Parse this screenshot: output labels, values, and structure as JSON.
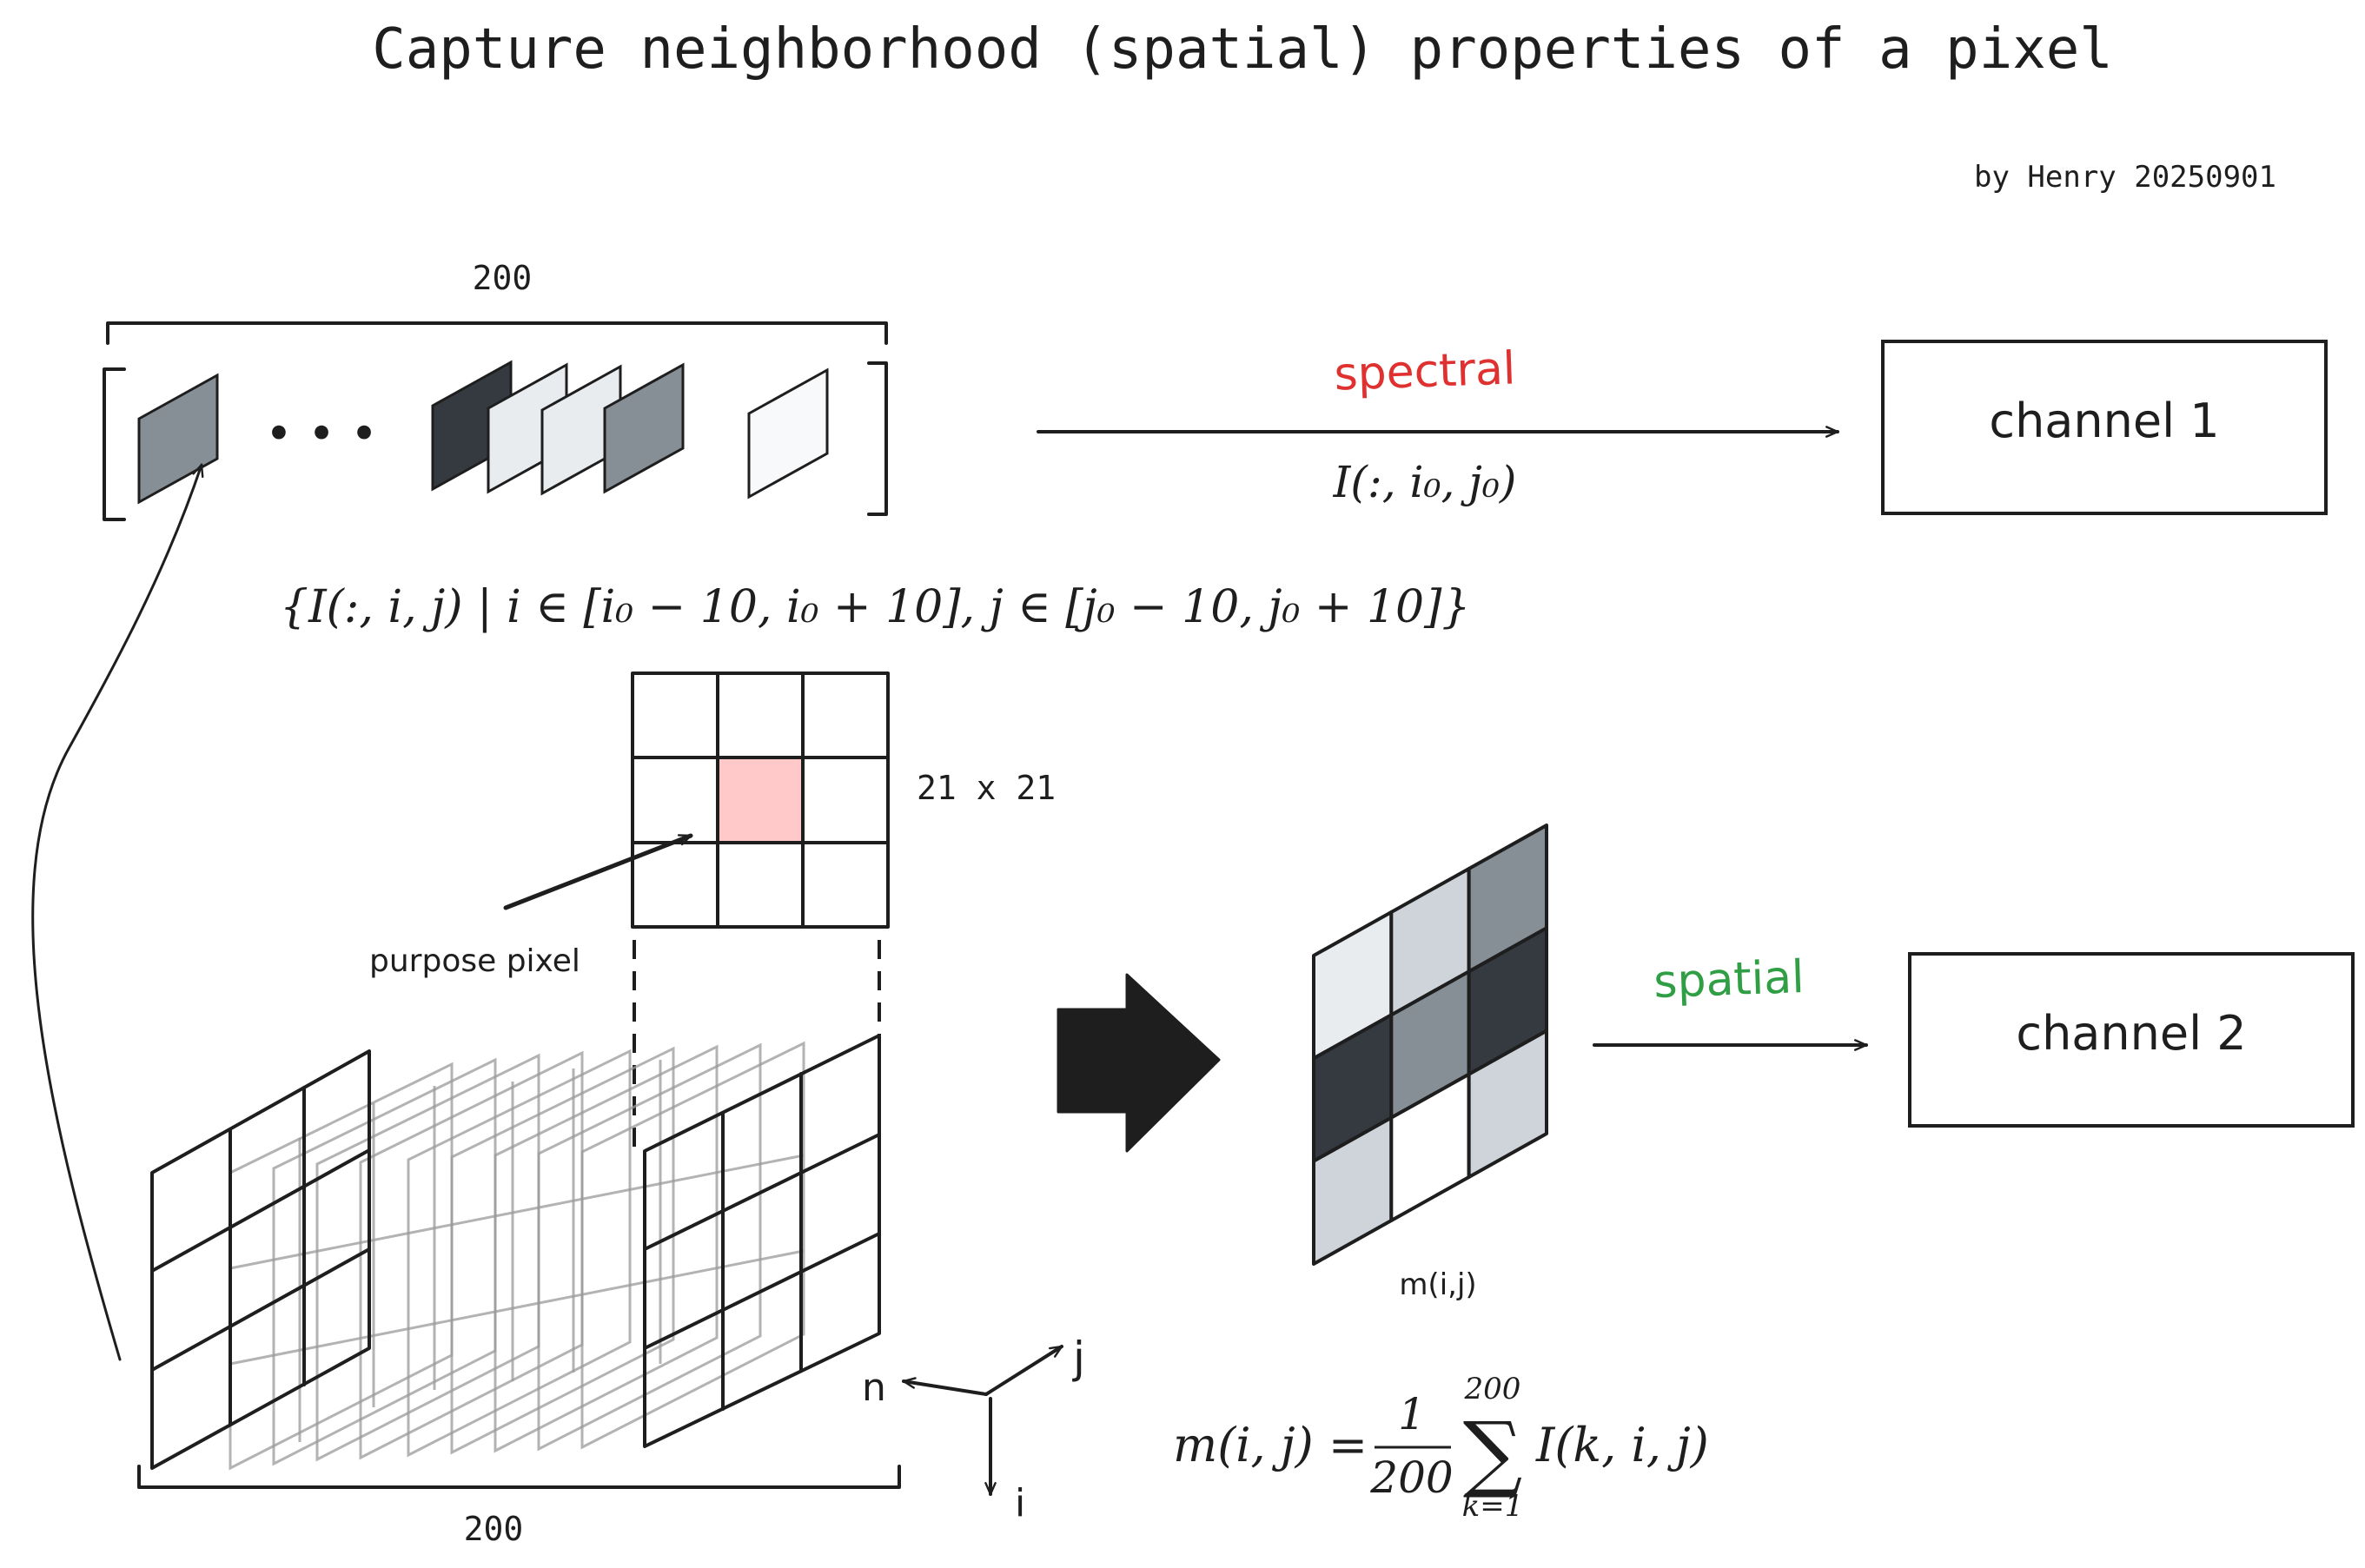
{
  "title": "Capture neighborhood (spatial) properties of a pixel",
  "author": "by Henry 20250901",
  "spectral_stack": {
    "band_count_label": "200",
    "ellipsis": "• • •"
  },
  "spectral_branch": {
    "label": "spectral",
    "label_color": "#e03131",
    "formula": "I(:, i₀, j₀)",
    "target": "channel 1"
  },
  "neighborhood": {
    "set_formula": "{I(:, i, j) | i ∈ [i₀ − 10, i₀ + 10], j ∈ [j₀ − 10, j₀ + 10]}",
    "window_size": "21 x 21",
    "purpose_label": "purpose pixel",
    "purpose_color": "#ffc9c9"
  },
  "cube": {
    "width_label": "200",
    "axis_n": "n",
    "axis_j": "j",
    "axis_i": "i"
  },
  "mean_map": {
    "label": "m(i,j)",
    "formula_lhs": "m(i, j) =",
    "formula_num": "1",
    "formula_den": "200",
    "sum_upper": "200",
    "sum_symbol": "∑",
    "sum_lower": "k=1",
    "formula_rhs": "I(k, i, j)",
    "cells": [
      [
        "#e9ecef",
        "#ced4da",
        "#868e96"
      ],
      [
        "#343a40",
        "#868e96",
        "#343a40"
      ],
      [
        "#ced4da",
        "#ffffff",
        "#ced4da"
      ]
    ]
  },
  "spatial_branch": {
    "label": "spatial",
    "label_color": "#2f9e44",
    "target": "channel 2"
  }
}
